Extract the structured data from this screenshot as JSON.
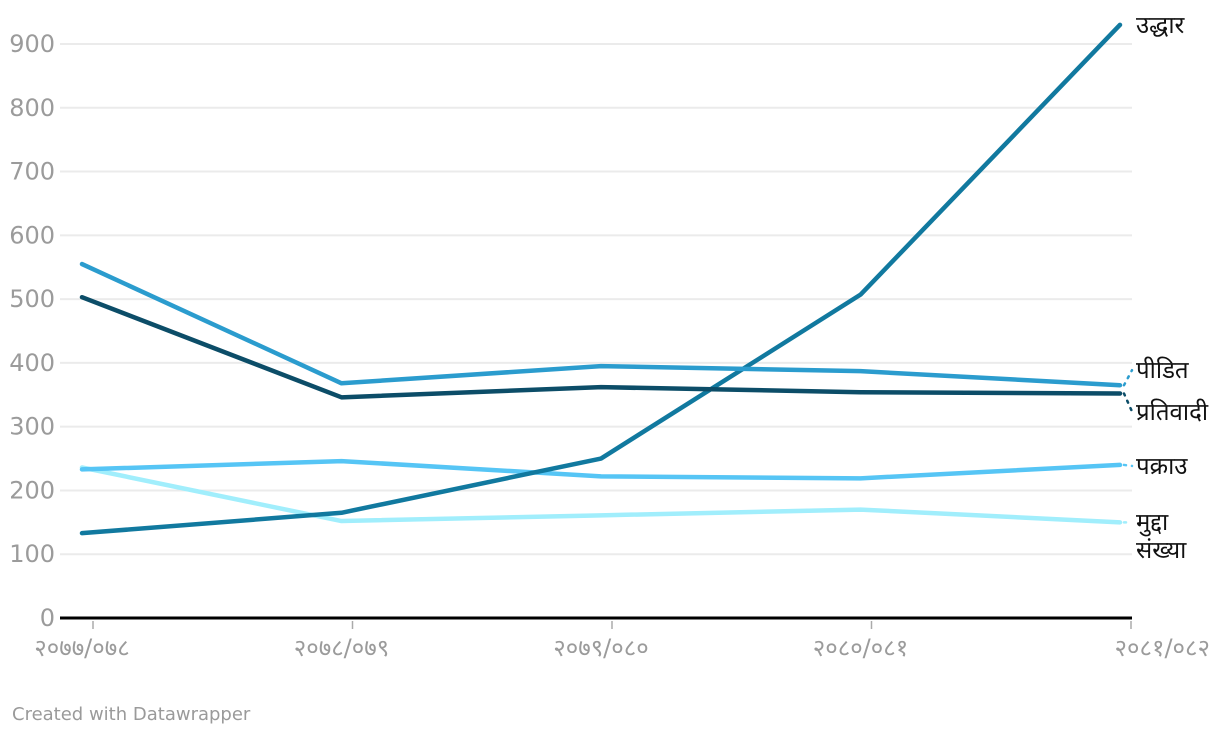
{
  "footer": {
    "credit": "Created with Datawrapper"
  },
  "chart_data": {
    "type": "line",
    "x": [
      "२०७७/०७८",
      "२०७८/०७९",
      "२०७९/०८०",
      "२०८०/०८१",
      "२०८१/०८२"
    ],
    "series": [
      {
        "name": "मुद्दा संख्या",
        "label_lines": [
          "मुद्दा",
          "संख्या"
        ],
        "color": "#a1eefc",
        "values": [
          236,
          152,
          161,
          170,
          150
        ]
      },
      {
        "name": "पक्राउ",
        "label_lines": [
          "पक्राउ"
        ],
        "color": "#56c5f5",
        "values": [
          233,
          246,
          222,
          219,
          240
        ]
      },
      {
        "name": "उद्धार",
        "label_lines": [
          "उद्धार"
        ],
        "color": "#11799f",
        "values": [
          133,
          165,
          250,
          507,
          930
        ]
      },
      {
        "name": "पीडित",
        "label_lines": [
          "पीडित"
        ],
        "color": "#2b9cce",
        "values": [
          555,
          368,
          395,
          387,
          365
        ]
      },
      {
        "name": "प्रतिवादी",
        "label_lines": [
          "प्रतिवादी"
        ],
        "color": "#0c4d68",
        "values": [
          503,
          346,
          362,
          354,
          352
        ]
      }
    ],
    "ylim": [
      0,
      900
    ],
    "yticks": [
      0,
      100,
      200,
      300,
      400,
      500,
      600,
      700,
      800,
      900
    ],
    "grid": true,
    "grid_color": "#ebebeb",
    "axis_color": "#000000",
    "axis_text_color": "#9b9b9b",
    "legend_position": "direct-labels-right"
  }
}
